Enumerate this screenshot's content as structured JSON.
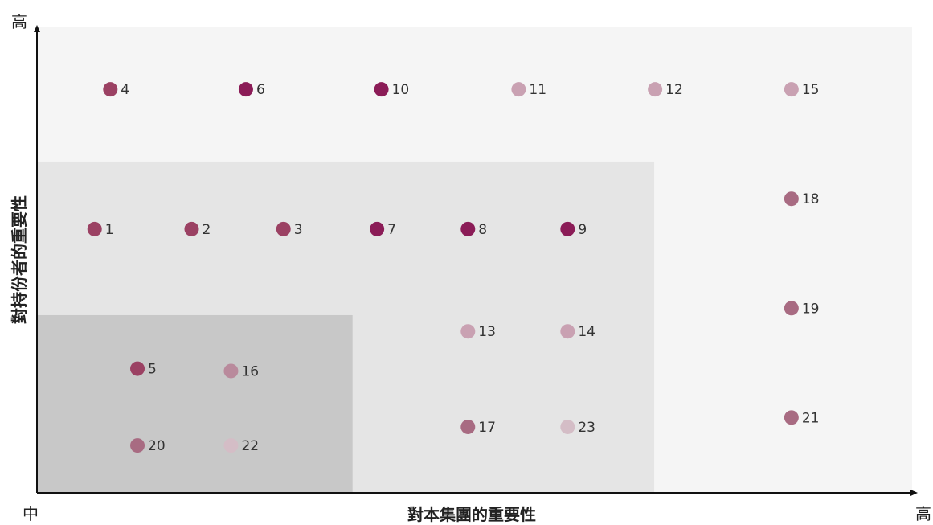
{
  "chart_data": {
    "type": "scatter",
    "title": "",
    "xlabel": "對本集團的重要性",
    "ylabel": "對持份者的重要性",
    "x_min_label": "中",
    "x_max_label": "高",
    "y_max_label": "高",
    "xlim": [
      0,
      100
    ],
    "ylim": [
      0,
      100
    ],
    "zones": [
      {
        "name": "outer",
        "x": [
          0,
          100
        ],
        "y": [
          0,
          100
        ],
        "color": "#f5f5f5"
      },
      {
        "name": "middle",
        "x": [
          0,
          70.5
        ],
        "y": [
          0,
          71
        ],
        "color": "#e5e5e5"
      },
      {
        "name": "inner",
        "x": [
          0,
          36
        ],
        "y": [
          0,
          38
        ],
        "color": "#c8c8c8"
      }
    ],
    "points": [
      {
        "label": "1",
        "x": 6.5,
        "y": 56.5,
        "color": "#9b4163"
      },
      {
        "label": "2",
        "x": 17.6,
        "y": 56.5,
        "color": "#9b4163"
      },
      {
        "label": "3",
        "x": 28.1,
        "y": 56.5,
        "color": "#9b4163"
      },
      {
        "label": "4",
        "x": 8.3,
        "y": 86.5,
        "color": "#9b4163"
      },
      {
        "label": "5",
        "x": 11.4,
        "y": 26.5,
        "color": "#9b4163"
      },
      {
        "label": "6",
        "x": 23.8,
        "y": 86.5,
        "color": "#8b1c57"
      },
      {
        "label": "7",
        "x": 38.8,
        "y": 56.5,
        "color": "#8b1c57"
      },
      {
        "label": "8",
        "x": 49.2,
        "y": 56.5,
        "color": "#8b1c57"
      },
      {
        "label": "9",
        "x": 60.6,
        "y": 56.5,
        "color": "#8b1c57"
      },
      {
        "label": "10",
        "x": 39.3,
        "y": 86.5,
        "color": "#8b1c57"
      },
      {
        "label": "11",
        "x": 55.0,
        "y": 86.5,
        "color": "#c9a1b2"
      },
      {
        "label": "12",
        "x": 70.6,
        "y": 86.5,
        "color": "#c9a1b2"
      },
      {
        "label": "13",
        "x": 49.2,
        "y": 34.5,
        "color": "#c9a1b2"
      },
      {
        "label": "14",
        "x": 60.6,
        "y": 34.5,
        "color": "#c9a1b2"
      },
      {
        "label": "15",
        "x": 86.2,
        "y": 86.5,
        "color": "#c9a1b2"
      },
      {
        "label": "16",
        "x": 22.1,
        "y": 26.0,
        "color": "#b98a9c"
      },
      {
        "label": "17",
        "x": 49.2,
        "y": 14.0,
        "color": "#a86b82"
      },
      {
        "label": "18",
        "x": 86.2,
        "y": 63.0,
        "color": "#a86b82"
      },
      {
        "label": "19",
        "x": 86.2,
        "y": 39.5,
        "color": "#a86b82"
      },
      {
        "label": "20",
        "x": 11.4,
        "y": 10.0,
        "color": "#a86b82"
      },
      {
        "label": "21",
        "x": 86.2,
        "y": 16.0,
        "color": "#a86b82"
      },
      {
        "label": "22",
        "x": 22.1,
        "y": 10.0,
        "color": "#d4bdc6"
      },
      {
        "label": "23",
        "x": 60.6,
        "y": 14.0,
        "color": "#d4bdc6"
      }
    ]
  }
}
